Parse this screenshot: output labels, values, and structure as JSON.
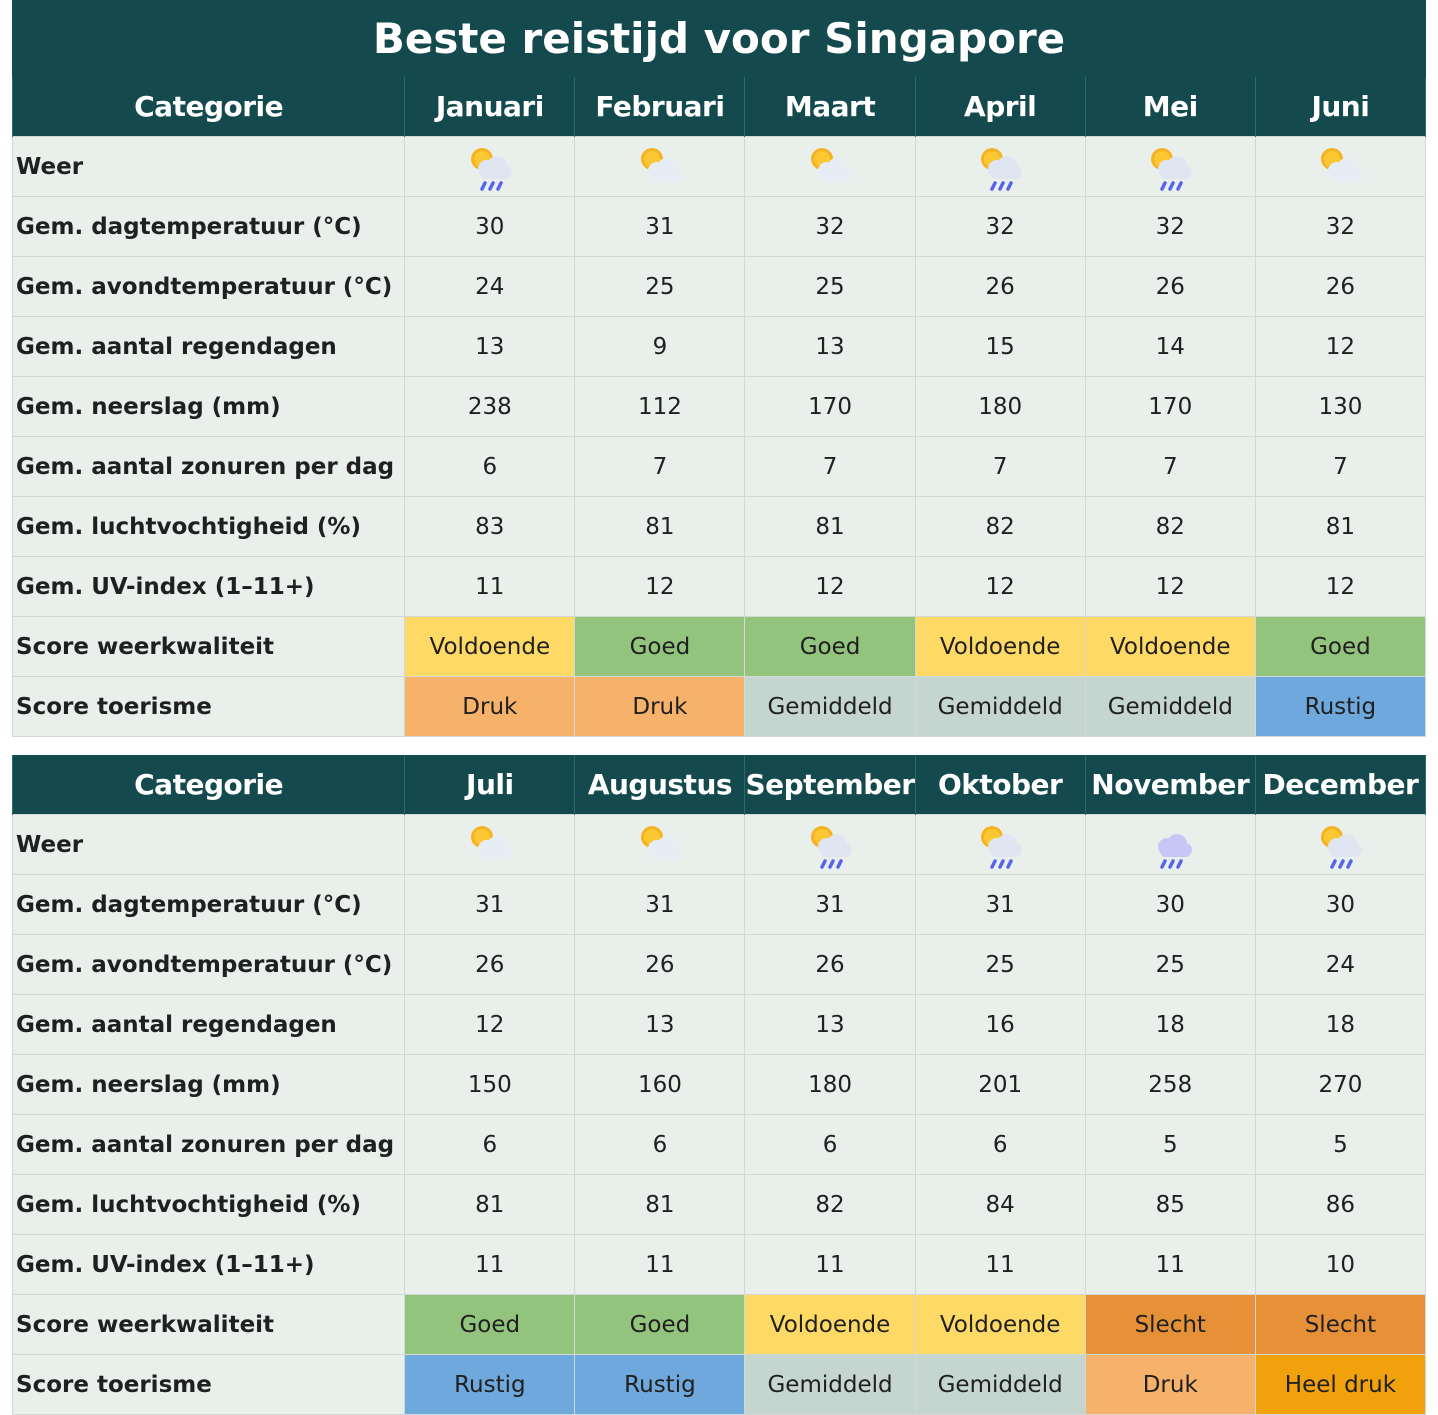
{
  "title": "Beste reistijd voor Singapore",
  "category_header": "Categorie",
  "row_labels": {
    "weer": "Weer",
    "dagtemp": "Gem. dagtemperatuur (°C)",
    "avondtemp": "Gem. avondtemperatuur (°C)",
    "regendagen": "Gem. aantal regendagen",
    "neerslag": "Gem. neerslag (mm)",
    "zonuren": "Gem. aantal zonuren per dag",
    "luchtvochtigheid": "Gem. luchtvochtigheid (%)",
    "uvindex": "Gem. UV-index (1–11+)",
    "weerkwaliteit": "Score weerkwaliteit",
    "toerisme": "Score toerisme"
  },
  "months": [
    {
      "name": "Januari",
      "weather": "sun-cloud-rain-icon",
      "dagtemp": "30",
      "avondtemp": "24",
      "regendagen": "13",
      "neerslag": "238",
      "zonuren": "6",
      "luchtvochtigheid": "83",
      "uvindex": "11",
      "weerkwaliteit": "Voldoende",
      "toerisme": "Druk"
    },
    {
      "name": "Februari",
      "weather": "sun-cloud-icon",
      "dagtemp": "31",
      "avondtemp": "25",
      "regendagen": "9",
      "neerslag": "112",
      "zonuren": "7",
      "luchtvochtigheid": "81",
      "uvindex": "12",
      "weerkwaliteit": "Goed",
      "toerisme": "Druk"
    },
    {
      "name": "Maart",
      "weather": "sun-cloud-icon",
      "dagtemp": "32",
      "avondtemp": "25",
      "regendagen": "13",
      "neerslag": "170",
      "zonuren": "7",
      "luchtvochtigheid": "81",
      "uvindex": "12",
      "weerkwaliteit": "Goed",
      "toerisme": "Gemiddeld"
    },
    {
      "name": "April",
      "weather": "sun-cloud-rain-icon",
      "dagtemp": "32",
      "avondtemp": "26",
      "regendagen": "15",
      "neerslag": "180",
      "zonuren": "7",
      "luchtvochtigheid": "82",
      "uvindex": "12",
      "weerkwaliteit": "Voldoende",
      "toerisme": "Gemiddeld"
    },
    {
      "name": "Mei",
      "weather": "sun-cloud-rain-icon",
      "dagtemp": "32",
      "avondtemp": "26",
      "regendagen": "14",
      "neerslag": "170",
      "zonuren": "7",
      "luchtvochtigheid": "82",
      "uvindex": "12",
      "weerkwaliteit": "Voldoende",
      "toerisme": "Gemiddeld"
    },
    {
      "name": "Juni",
      "weather": "sun-cloud-icon",
      "dagtemp": "32",
      "avondtemp": "26",
      "regendagen": "12",
      "neerslag": "130",
      "zonuren": "7",
      "luchtvochtigheid": "81",
      "uvindex": "12",
      "weerkwaliteit": "Goed",
      "toerisme": "Rustig"
    },
    {
      "name": "Juli",
      "weather": "sun-cloud-icon",
      "dagtemp": "31",
      "avondtemp": "26",
      "regendagen": "12",
      "neerslag": "150",
      "zonuren": "6",
      "luchtvochtigheid": "81",
      "uvindex": "11",
      "weerkwaliteit": "Goed",
      "toerisme": "Rustig"
    },
    {
      "name": "Augustus",
      "weather": "sun-cloud-icon",
      "dagtemp": "31",
      "avondtemp": "26",
      "regendagen": "13",
      "neerslag": "160",
      "zonuren": "6",
      "luchtvochtigheid": "81",
      "uvindex": "11",
      "weerkwaliteit": "Goed",
      "toerisme": "Rustig"
    },
    {
      "name": "September",
      "weather": "sun-cloud-rain-icon",
      "dagtemp": "31",
      "avondtemp": "26",
      "regendagen": "13",
      "neerslag": "180",
      "zonuren": "6",
      "luchtvochtigheid": "82",
      "uvindex": "11",
      "weerkwaliteit": "Voldoende",
      "toerisme": "Gemiddeld"
    },
    {
      "name": "Oktober",
      "weather": "sun-cloud-rain-icon",
      "dagtemp": "31",
      "avondtemp": "25",
      "regendagen": "16",
      "neerslag": "201",
      "zonuren": "6",
      "luchtvochtigheid": "84",
      "uvindex": "11",
      "weerkwaliteit": "Voldoende",
      "toerisme": "Gemiddeld"
    },
    {
      "name": "November",
      "weather": "cloud-rain-icon",
      "dagtemp": "30",
      "avondtemp": "25",
      "regendagen": "18",
      "neerslag": "258",
      "zonuren": "5",
      "luchtvochtigheid": "85",
      "uvindex": "11",
      "weerkwaliteit": "Slecht",
      "toerisme": "Druk"
    },
    {
      "name": "December",
      "weather": "sun-cloud-rain-icon",
      "dagtemp": "30",
      "avondtemp": "24",
      "regendagen": "18",
      "neerslag": "270",
      "zonuren": "5",
      "luchtvochtigheid": "86",
      "uvindex": "10",
      "weerkwaliteit": "Slecht",
      "toerisme": "Heel druk"
    }
  ],
  "colors": {
    "header_bg": "#144a4d",
    "row_bg": "#e9f0ec",
    "Voldoende": "#ffd966",
    "Goed": "#93c47d",
    "Slecht": "#e69138",
    "Druk": "#f6b26b",
    "Gemiddeld": "#c5d6d0",
    "Rustig": "#6fa8dc",
    "Heel druk": "#f1a10c"
  }
}
